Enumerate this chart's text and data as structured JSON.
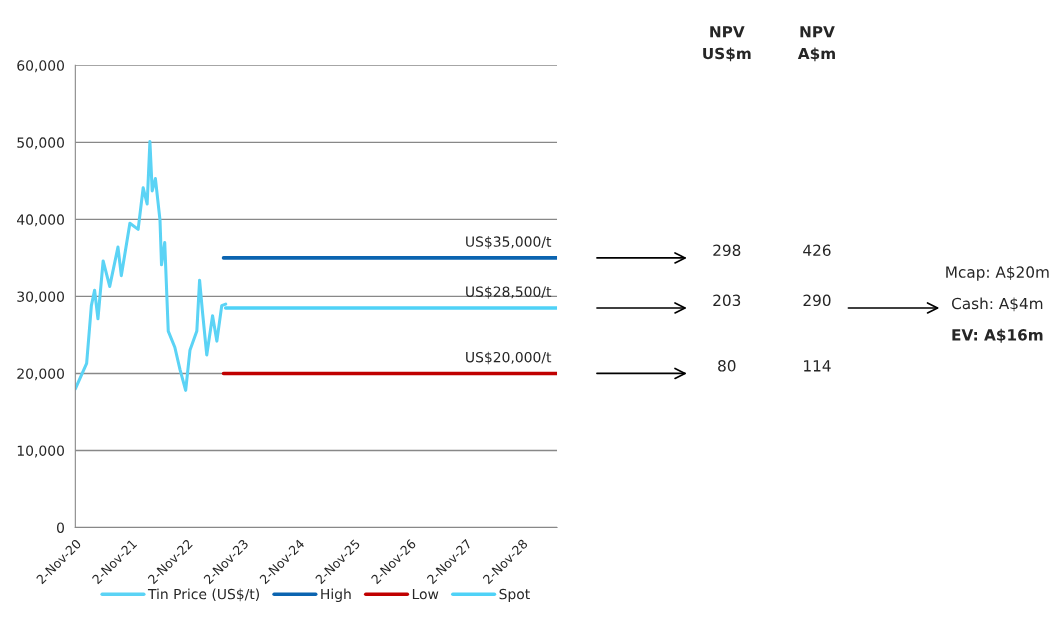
{
  "chart_data": {
    "type": "line",
    "series": [
      {
        "name": "Tin Price (US$/t)",
        "color": "#5bd3f5",
        "x": [
          "2020-11-02",
          "2020-12-01",
          "2021-01-15",
          "2021-02-15",
          "2021-03-08",
          "2021-03-30",
          "2021-05-03",
          "2021-06-15",
          "2021-08-08",
          "2021-08-30",
          "2021-10-25",
          "2021-12-18",
          "2022-01-20",
          "2022-02-15",
          "2022-03-05",
          "2022-03-20",
          "2022-04-10",
          "2022-05-10",
          "2022-05-20",
          "2022-06-10",
          "2022-07-03",
          "2022-08-15",
          "2022-09-18",
          "2022-10-25",
          "2022-11-22",
          "2023-01-06",
          "2023-01-24",
          "2023-02-12",
          "2023-03-12",
          "2023-04-19",
          "2023-05-17",
          "2023-06-18",
          "2023-07-14"
        ],
        "values": [
          18000,
          19300,
          21300,
          28800,
          30800,
          27100,
          34600,
          31300,
          36400,
          32700,
          39500,
          38700,
          44100,
          42000,
          50100,
          43700,
          45300,
          39900,
          34100,
          37000,
          25500,
          23400,
          20500,
          17800,
          23000,
          25500,
          32100,
          28000,
          22400,
          27500,
          24200,
          28800,
          29000
        ]
      },
      {
        "name": "High",
        "color": "#0b64b0",
        "x": [
          "2023-06-30",
          "2029-06-20"
        ],
        "values": [
          35000,
          35000
        ]
      },
      {
        "name": "Low",
        "color": "#c00000",
        "x": [
          "2023-06-30",
          "2029-06-20"
        ],
        "values": [
          20000,
          20000
        ]
      },
      {
        "name": "Spot",
        "color": "#4fd2f7",
        "x": [
          "2023-07-14",
          "2029-06-20"
        ],
        "values": [
          28500,
          28500
        ]
      }
    ],
    "xlim": [
      "2020-11-02",
      "2029-06-20"
    ],
    "xticks": [
      {
        "value": "2020-11-02",
        "label": "2-Nov-20"
      },
      {
        "value": "2021-11-02",
        "label": "2-Nov-21"
      },
      {
        "value": "2022-11-02",
        "label": "2-Nov-22"
      },
      {
        "value": "2023-11-02",
        "label": "2-Nov-23"
      },
      {
        "value": "2024-11-02",
        "label": "2-Nov-24"
      },
      {
        "value": "2025-11-02",
        "label": "2-Nov-25"
      },
      {
        "value": "2026-11-02",
        "label": "2-Nov-26"
      },
      {
        "value": "2027-11-02",
        "label": "2-Nov-27"
      },
      {
        "value": "2028-11-02",
        "label": "2-Nov-28"
      }
    ],
    "ylim": [
      0,
      60000
    ],
    "yticks": [
      0,
      {
        "value": 10000,
        "label": "10,000"
      },
      {
        "value": 20000,
        "label": "20,000"
      },
      {
        "value": 30000,
        "label": "30,000"
      },
      {
        "value": 40000,
        "label": "40,000"
      },
      {
        "value": 50000,
        "label": "50,000"
      },
      {
        "value": 60000,
        "label": "60,000"
      }
    ],
    "grid": "y",
    "legend": "bottom",
    "annotations": [
      {
        "text": "US$35,000/t",
        "x": "2029-06-20",
        "y": 35000
      },
      {
        "text": "US$28,500/t",
        "x": "2029-06-20",
        "y": 28500
      },
      {
        "text": "US$20,000/t",
        "x": "2029-06-20",
        "y": 20000
      },
      "NPV\nUS$m",
      "NPV\nA$m",
      "298",
      "426",
      "203",
      "290",
      "80",
      "114",
      "Mcap: A$20m",
      "Cash: A$4m",
      "EV: A$16m"
    ]
  }
}
